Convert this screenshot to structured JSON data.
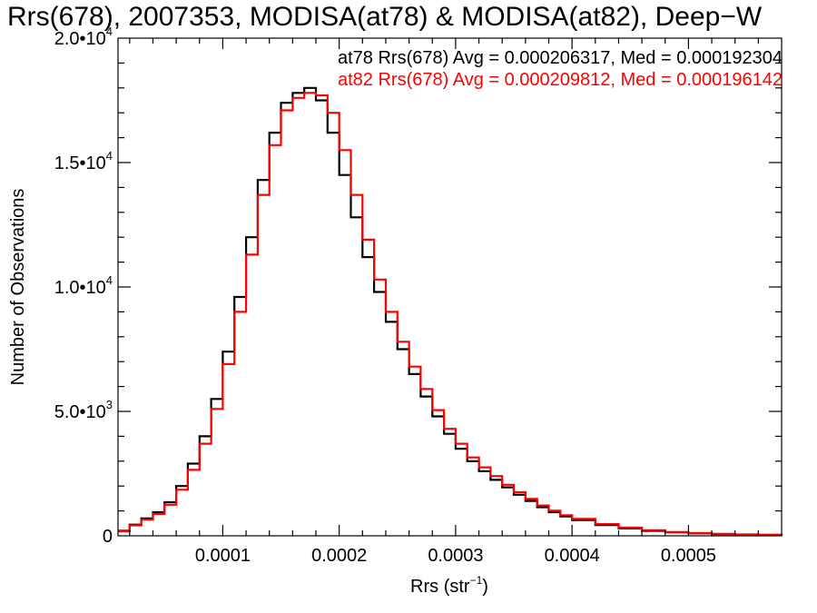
{
  "chart_data": {
    "type": "line",
    "title": "Rrs(678), 2007353, MODISA(at78) & MODISA(at82), Deep−W",
    "xlabel": "Rrs (str",
    "xlabel_exp": "−1",
    "xlabel_close": ")",
    "ylabel": "Number of Observations",
    "xlim": [
      1e-05,
      0.00058
    ],
    "ylim": [
      0,
      20000
    ],
    "grid": false,
    "legend_position": "top-right",
    "xticks": [
      {
        "value": 0.0001,
        "label": "0.0001"
      },
      {
        "value": 0.0002,
        "label": "0.0002"
      },
      {
        "value": 0.0003,
        "label": "0.0003"
      },
      {
        "value": 0.0004,
        "label": "0.0004"
      },
      {
        "value": 0.0005,
        "label": "0.0005"
      }
    ],
    "yticks": [
      {
        "value": 0,
        "base": "0",
        "exp": ""
      },
      {
        "value": 5000,
        "base": "5.0•10",
        "exp": "3"
      },
      {
        "value": 10000,
        "base": "1.0•10",
        "exp": "4"
      },
      {
        "value": 15000,
        "base": "1.5•10",
        "exp": "4"
      },
      {
        "value": 20000,
        "base": "2.0•10",
        "exp": "4"
      }
    ],
    "annotations": [
      {
        "text": "at78 Rrs(678) Avg = 0.000206317, Med = 0.000192304",
        "color": "#000000"
      },
      {
        "text": "at82 Rrs(678) Avg = 0.000209812, Med = 0.000196142",
        "color": "#ff0000"
      }
    ],
    "series": [
      {
        "color": "#000000",
        "x": [
          1e-05,
          2e-05,
          3e-05,
          4e-05,
          5e-05,
          6e-05,
          7e-05,
          8e-05,
          9e-05,
          0.0001,
          0.00011,
          0.00012,
          0.00013,
          0.00014,
          0.00015,
          0.00016,
          0.00017,
          0.00018,
          0.00019,
          0.0002,
          0.00021,
          0.00022,
          0.00023,
          0.00024,
          0.00025,
          0.00026,
          0.00027,
          0.00028,
          0.00029,
          0.0003,
          0.00031,
          0.00032,
          0.00033,
          0.00034,
          0.00035,
          0.00036,
          0.00037,
          0.00038,
          0.00039,
          0.0004,
          0.00042,
          0.00044,
          0.00046,
          0.00048,
          0.0005,
          0.00052,
          0.00054,
          0.00056,
          0.00058
        ],
        "y": [
          200,
          450,
          700,
          950,
          1350,
          2000,
          2900,
          4000,
          5500,
          7400,
          9600,
          12000,
          14300,
          16200,
          17400,
          17800,
          18000,
          17500,
          16200,
          14500,
          12800,
          11200,
          9800,
          8600,
          7500,
          6500,
          5600,
          4800,
          4100,
          3500,
          3000,
          2600,
          2250,
          1950,
          1650,
          1400,
          1150,
          950,
          780,
          630,
          430,
          300,
          200,
          140,
          100,
          70,
          50,
          35,
          20
        ]
      },
      {
        "color": "#ff0000",
        "x": [
          1e-05,
          2e-05,
          3e-05,
          4e-05,
          5e-05,
          6e-05,
          7e-05,
          8e-05,
          9e-05,
          0.0001,
          0.00011,
          0.00012,
          0.00013,
          0.00014,
          0.00015,
          0.00016,
          0.00017,
          0.00018,
          0.00019,
          0.0002,
          0.00021,
          0.00022,
          0.00023,
          0.00024,
          0.00025,
          0.00026,
          0.00027,
          0.00028,
          0.00029,
          0.0003,
          0.00031,
          0.00032,
          0.00033,
          0.00034,
          0.00035,
          0.00036,
          0.00037,
          0.00038,
          0.00039,
          0.0004,
          0.00042,
          0.00044,
          0.00046,
          0.00048,
          0.0005,
          0.00052,
          0.00054,
          0.00056,
          0.00058
        ],
        "y": [
          180,
          420,
          650,
          880,
          1250,
          1850,
          2650,
          3700,
          5100,
          6900,
          9000,
          11300,
          13700,
          15700,
          17100,
          17600,
          17800,
          17700,
          17000,
          15500,
          13700,
          11900,
          10300,
          9000,
          7800,
          6800,
          5900,
          5050,
          4300,
          3700,
          3150,
          2750,
          2400,
          2050,
          1750,
          1480,
          1220,
          1010,
          830,
          680,
          470,
          330,
          225,
          155,
          110,
          80,
          55,
          40,
          25
        ]
      }
    ]
  }
}
